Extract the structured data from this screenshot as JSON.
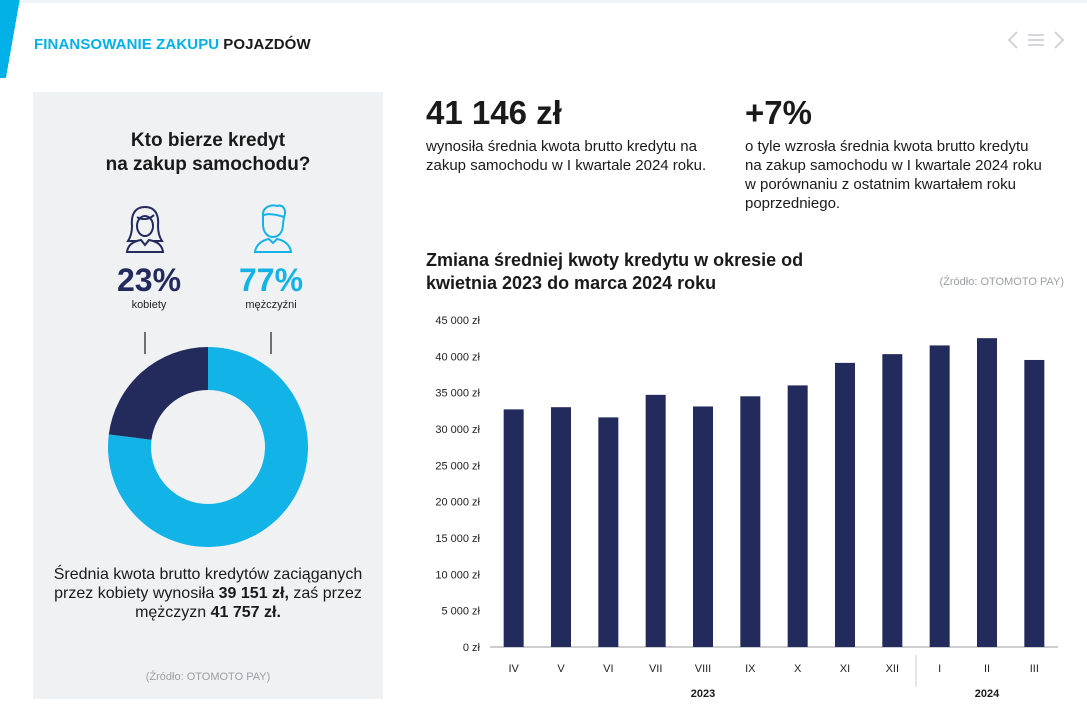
{
  "colors": {
    "accent": "#00b0e6",
    "navy": "#232a5c",
    "light_blue": "#12b3e6",
    "panel_bg": "#f0f1f3",
    "source_gray": "#9a9ea6"
  },
  "header": {
    "title_part1": "FINANSOWANIE ZAKUPU",
    "title_part2": "POJAZDÓW",
    "nav_prev_icon": "chevron-left-icon",
    "nav_menu_icon": "menu-icon",
    "nav_next_icon": "chevron-right-icon"
  },
  "panel": {
    "title_line1": "Kto bierze kredyt",
    "title_line2": "na zakup samochodu?",
    "women": {
      "icon": "woman-icon",
      "percent": "23%",
      "label": "kobiety"
    },
    "men": {
      "icon": "man-icon",
      "percent": "77%",
      "label": "mężczyźni"
    },
    "summary": {
      "part1": "Średnia kwota brutto kredytów zaciąganych przez kobiety wynosiła ",
      "women_amount": "39 151 zł,",
      "part2": " zaś przez mężczyzn ",
      "men_amount": "41 757 zł."
    },
    "source": "(Źródło: OTOMOTO PAY)"
  },
  "stats": [
    {
      "value": "41 146 zł",
      "desc": "wynosiła średnia kwota brutto kredytu na zakup samochodu w I kwartale 2024 roku."
    },
    {
      "value": "+7%",
      "desc": "o tyle wzrosła średnia kwota brutto kredytu na zakup samochodu w I kwartale 2024 roku w porównaniu z ostatnim kwartałem roku poprzedniego."
    }
  ],
  "chart_title": "Zmiana średniej kwoty kredytu w okresie od kwietnia 2023 do marca 2024 roku",
  "chart_source": "(Źródło: OTOMOTO PAY)",
  "chart_data": [
    {
      "type": "pie",
      "title": "Kto bierze kredyt na zakup samochodu?",
      "categories": [
        "kobiety",
        "mężczyźni"
      ],
      "values": [
        23,
        77
      ],
      "unit": "%"
    },
    {
      "type": "bar",
      "title": "Zmiana średniej kwoty kredytu w okresie od kwietnia 2023 do marca 2024 roku",
      "categories": [
        "IV",
        "V",
        "VI",
        "VII",
        "VIII",
        "IX",
        "X",
        "XI",
        "XII",
        "I",
        "II",
        "III"
      ],
      "values": [
        32700,
        33000,
        31600,
        34700,
        33100,
        34500,
        36000,
        39100,
        40300,
        41500,
        42500,
        39500
      ],
      "ylim": [
        0,
        45000
      ],
      "yticks": [
        0,
        5000,
        10000,
        15000,
        20000,
        25000,
        30000,
        35000,
        40000,
        45000
      ],
      "ytick_labels": [
        "0 zł",
        "5 000 zł",
        "10 000 zł",
        "15 000 zł",
        "20 000 zł",
        "25 000 zł",
        "30 000 zł",
        "35 000 zł",
        "40 000 zł",
        "45 000 zł"
      ],
      "year_groups": [
        {
          "label": "2023",
          "from": 0,
          "to": 8
        },
        {
          "label": "2024",
          "from": 9,
          "to": 11
        }
      ],
      "xlabel": "",
      "ylabel": "",
      "grid": false
    }
  ]
}
